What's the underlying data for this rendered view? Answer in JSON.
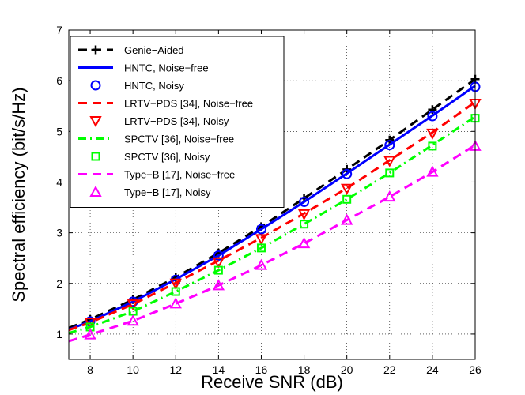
{
  "chart_data": {
    "type": "line",
    "title": "",
    "xlabel": "Receive SNR (dB)",
    "ylabel": "Spectral efficiency (bit/s/Hz)",
    "xlim": [
      7,
      26
    ],
    "ylim": [
      0.5,
      7
    ],
    "xticks": [
      8,
      10,
      12,
      14,
      16,
      18,
      20,
      22,
      24,
      26
    ],
    "yticks": [
      1,
      2,
      3,
      4,
      5,
      6,
      7
    ],
    "grid": true,
    "legend_position": "top-left",
    "x": [
      7,
      8,
      10,
      12,
      14,
      16,
      18,
      20,
      22,
      24,
      26
    ],
    "series": [
      {
        "name": "Genie−Aided",
        "style": "dashed",
        "marker": "plus",
        "color": "#000000",
        "line": true,
        "markers": true,
        "values": [
          1.12,
          1.29,
          1.68,
          2.12,
          2.6,
          3.12,
          3.68,
          4.25,
          4.83,
          5.43,
          6.03
        ]
      },
      {
        "name": "HNTC, Noise−free",
        "style": "solid",
        "marker": "none",
        "color": "#0000ff",
        "line": true,
        "markers": false,
        "values": [
          1.09,
          1.25,
          1.64,
          2.08,
          2.55,
          3.07,
          3.61,
          4.17,
          4.74,
          5.31,
          5.9
        ]
      },
      {
        "name": "HNTC, Noisy",
        "style": "none",
        "marker": "circle",
        "color": "#0000ff",
        "line": false,
        "markers": true,
        "values": [
          null,
          1.25,
          1.64,
          2.07,
          2.55,
          3.07,
          3.61,
          4.16,
          4.73,
          5.3,
          5.88
        ]
      },
      {
        "name": "LRTV−PDS [34], Noise−free",
        "style": "dashed",
        "marker": "none",
        "color": "#ff0000",
        "line": true,
        "markers": false,
        "values": [
          1.08,
          1.23,
          1.59,
          2.01,
          2.45,
          2.9,
          3.38,
          3.88,
          4.43,
          4.98,
          5.58
        ]
      },
      {
        "name": "LRTV−PDS [34], Noisy",
        "style": "none",
        "marker": "triangle-down",
        "color": "#ff0000",
        "line": false,
        "markers": true,
        "values": [
          null,
          1.23,
          1.59,
          2.0,
          2.42,
          2.88,
          3.37,
          3.87,
          4.42,
          4.96,
          5.55
        ]
      },
      {
        "name": "SPCTV [36], Noise−free",
        "style": "dashdot",
        "marker": "none",
        "color": "#00ff00",
        "line": true,
        "markers": false,
        "values": [
          1.02,
          1.14,
          1.45,
          1.84,
          2.26,
          2.7,
          3.17,
          3.66,
          4.18,
          4.73,
          5.29
        ]
      },
      {
        "name": "SPCTV [36], Noisy",
        "style": "none",
        "marker": "square",
        "color": "#00ff00",
        "line": false,
        "markers": true,
        "values": [
          null,
          1.14,
          1.45,
          1.84,
          2.26,
          2.7,
          3.17,
          3.66,
          4.18,
          4.71,
          5.26
        ]
      },
      {
        "name": "Type−B [17], Noise−free",
        "style": "dashed",
        "marker": "none",
        "color": "#ff00ff",
        "line": true,
        "markers": false,
        "values": [
          0.86,
          0.99,
          1.26,
          1.6,
          1.96,
          2.36,
          2.79,
          3.25,
          3.71,
          4.2,
          4.73
        ]
      },
      {
        "name": "Type−B [17], Noisy",
        "style": "none",
        "marker": "triangle-up",
        "color": "#ff00ff",
        "line": false,
        "markers": true,
        "values": [
          null,
          0.99,
          1.26,
          1.6,
          1.96,
          2.36,
          2.79,
          3.25,
          3.71,
          4.2,
          4.71
        ]
      }
    ]
  }
}
